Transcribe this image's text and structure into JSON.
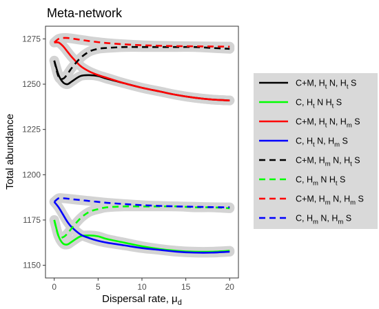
{
  "chart_data": {
    "type": "line",
    "title": "Meta-network",
    "xlabel": "Dispersal rate, μ",
    "xlabel_subscript": "d",
    "ylabel": "Total abundance",
    "xlim": [
      -1,
      21
    ],
    "ylim": [
      1143,
      1282
    ],
    "xticks": [
      0,
      5,
      10,
      15,
      20
    ],
    "yticks": [
      1150,
      1175,
      1200,
      1225,
      1250,
      1275
    ],
    "grid": false,
    "legend_position": "right",
    "series": [
      {
        "legend": [
          {
            "t": "C+M,  H"
          },
          {
            "t": "t",
            "sub": true
          },
          {
            "t": " N,  H"
          },
          {
            "t": "t",
            "sub": true
          },
          {
            "t": " S"
          }
        ],
        "color": "#000000",
        "dash": "solid",
        "x": [
          0,
          0.5,
          1,
          1.5,
          2,
          3,
          4,
          5,
          6,
          8,
          10,
          12,
          14,
          16,
          18,
          20
        ],
        "y": [
          1263,
          1255,
          1251,
          1250,
          1251.5,
          1254.5,
          1255,
          1254.5,
          1253,
          1250.5,
          1248,
          1246,
          1244,
          1242.5,
          1241.5,
          1241
        ]
      },
      {
        "legend": [
          {
            "t": "C,  H"
          },
          {
            "t": "t",
            "sub": true
          },
          {
            "t": " N  H"
          },
          {
            "t": "t",
            "sub": true
          },
          {
            "t": " S"
          }
        ],
        "color": "#00ff00",
        "dash": "solid",
        "x": [
          0,
          0.5,
          1,
          1.5,
          2,
          3,
          4,
          5,
          6,
          8,
          10,
          12,
          14,
          16,
          18,
          20
        ],
        "y": [
          1175,
          1166,
          1162,
          1161.5,
          1163,
          1166,
          1166.5,
          1166,
          1164.5,
          1162.5,
          1160.5,
          1159,
          1158,
          1157.5,
          1157.5,
          1158
        ]
      },
      {
        "legend": [
          {
            "t": "C+M,  H"
          },
          {
            "t": "t",
            "sub": true
          },
          {
            "t": " N,  H"
          },
          {
            "t": "m",
            "sub": true
          },
          {
            "t": " S"
          }
        ],
        "color": "#ff0000",
        "dash": "solid",
        "x": [
          0,
          0.5,
          1,
          1.5,
          2,
          3,
          4,
          5,
          6,
          8,
          10,
          12,
          14,
          16,
          18,
          20
        ],
        "y": [
          1273,
          1273,
          1271,
          1268,
          1265,
          1260,
          1257,
          1255,
          1253.5,
          1250.5,
          1248,
          1246,
          1244,
          1242.5,
          1241.5,
          1241
        ]
      },
      {
        "legend": [
          {
            "t": "C,  H"
          },
          {
            "t": "t",
            "sub": true
          },
          {
            "t": " N,  H"
          },
          {
            "t": "m",
            "sub": true
          },
          {
            "t": " S"
          }
        ],
        "color": "#0000ff",
        "dash": "solid",
        "x": [
          0,
          0.5,
          1,
          1.5,
          2,
          3,
          4,
          5,
          6,
          8,
          10,
          12,
          14,
          16,
          18,
          20
        ],
        "y": [
          1185,
          1182,
          1178,
          1174,
          1171,
          1167,
          1165,
          1163.5,
          1162.5,
          1161,
          1159.5,
          1158.5,
          1157.5,
          1157,
          1157,
          1157.5
        ]
      },
      {
        "legend": [
          {
            "t": "C+M,  H"
          },
          {
            "t": "m",
            "sub": true
          },
          {
            "t": " N,  H"
          },
          {
            "t": "t",
            "sub": true
          },
          {
            "t": " S"
          }
        ],
        "color": "#000000",
        "dash": "dashed",
        "x": [
          0,
          0.5,
          1,
          1.5,
          2,
          3,
          4,
          5,
          6,
          8,
          10,
          12,
          14,
          16,
          18,
          20
        ],
        "y": [
          1263,
          1254,
          1253,
          1255.5,
          1259,
          1264.5,
          1268,
          1269.5,
          1270,
          1270.5,
          1270.5,
          1270.5,
          1270.5,
          1270.5,
          1270,
          1269.5
        ]
      },
      {
        "legend": [
          {
            "t": "C,  H"
          },
          {
            "t": "m",
            "sub": true
          },
          {
            "t": " N  H"
          },
          {
            "t": "t",
            "sub": true
          },
          {
            "t": " S"
          }
        ],
        "color": "#00ff00",
        "dash": "dashed",
        "x": [
          0,
          0.5,
          1,
          1.5,
          2,
          3,
          4,
          5,
          6,
          8,
          10,
          12,
          14,
          16,
          18,
          20
        ],
        "y": [
          1175,
          1166,
          1165.5,
          1167.5,
          1170.5,
          1176,
          1179.5,
          1181,
          1182,
          1182.5,
          1182.5,
          1182.5,
          1182.5,
          1182,
          1182,
          1181.5
        ]
      },
      {
        "legend": [
          {
            "t": "C+M,  H"
          },
          {
            "t": "m",
            "sub": true
          },
          {
            "t": " N,  H"
          },
          {
            "t": "m",
            "sub": true
          },
          {
            "t": " S"
          }
        ],
        "color": "#ff0000",
        "dash": "dashed",
        "x": [
          0,
          0.5,
          1,
          1.5,
          2,
          3,
          4,
          5,
          6,
          8,
          10,
          12,
          14,
          16,
          18,
          20
        ],
        "y": [
          1273,
          1275,
          1275.5,
          1275.5,
          1275.2,
          1274.5,
          1273.8,
          1273.2,
          1272.7,
          1272,
          1271.5,
          1271.2,
          1271,
          1270.9,
          1270.8,
          1270.7
        ]
      },
      {
        "legend": [
          {
            "t": "C,  H"
          },
          {
            "t": "m",
            "sub": true
          },
          {
            "t": " N,  H"
          },
          {
            "t": "m",
            "sub": true
          },
          {
            "t": " S"
          }
        ],
        "color": "#0000ff",
        "dash": "dashed",
        "x": [
          0,
          0.5,
          1,
          1.5,
          2,
          3,
          4,
          5,
          6,
          8,
          10,
          12,
          14,
          16,
          18,
          20
        ],
        "y": [
          1185,
          1187,
          1187,
          1186.8,
          1186.5,
          1186,
          1185.5,
          1185,
          1184.5,
          1183.8,
          1183.2,
          1182.8,
          1182.5,
          1182.3,
          1182.1,
          1182
        ]
      }
    ]
  }
}
